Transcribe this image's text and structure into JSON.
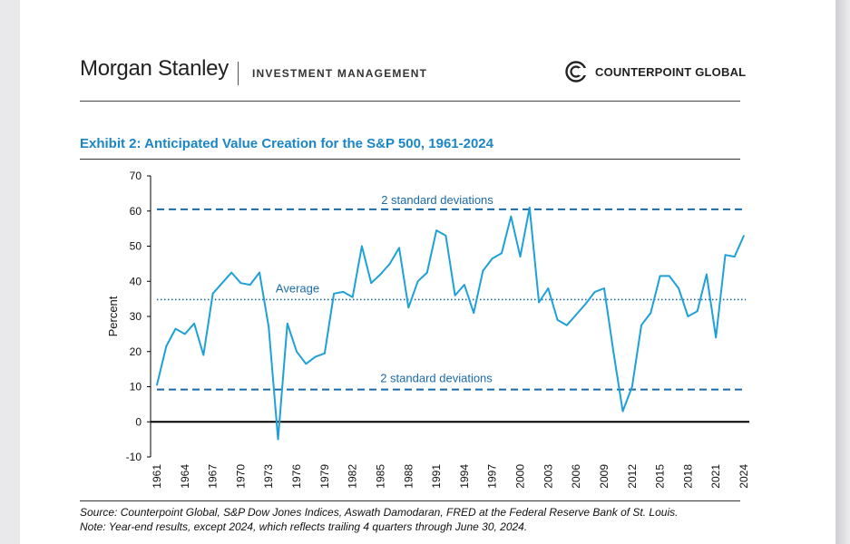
{
  "header": {
    "brand": "Morgan Stanley",
    "division": "INVESTMENT MANAGEMENT",
    "partner_logo_icon": "counterpoint-c-logo",
    "partner": "COUNTERPOINT GLOBAL"
  },
  "colors": {
    "accent": "#1a86c8",
    "line": "#1ea0d8",
    "axis": "#000000"
  },
  "chart_data": {
    "type": "line",
    "title": "Exhibit 2: Anticipated Value Creation for the S&P 500, 1961-2024",
    "ylabel": "Percent",
    "xlabel": "",
    "ylim": [
      -10,
      70
    ],
    "yticks": [
      -10,
      0,
      10,
      20,
      30,
      40,
      50,
      60,
      70
    ],
    "xlim": [
      1961,
      2024
    ],
    "xticks": [
      1961,
      1964,
      1967,
      1970,
      1973,
      1976,
      1979,
      1982,
      1985,
      1988,
      1991,
      1994,
      1997,
      2000,
      2003,
      2006,
      2009,
      2012,
      2015,
      2018,
      2021,
      2024
    ],
    "series": [
      {
        "name": "Anticipated value creation",
        "x": [
          1961,
          1962,
          1963,
          1964,
          1965,
          1966,
          1967,
          1968,
          1969,
          1970,
          1971,
          1972,
          1973,
          1974,
          1975,
          1976,
          1977,
          1978,
          1979,
          1980,
          1981,
          1982,
          1983,
          1984,
          1985,
          1986,
          1987,
          1988,
          1989,
          1990,
          1991,
          1992,
          1993,
          1994,
          1995,
          1996,
          1997,
          1998,
          1999,
          2000,
          2001,
          2002,
          2003,
          2004,
          2005,
          2006,
          2007,
          2008,
          2009,
          2010,
          2011,
          2012,
          2013,
          2014,
          2015,
          2016,
          2017,
          2018,
          2019,
          2020,
          2021,
          2022,
          2023,
          2024
        ],
        "values": [
          10.5,
          21.5,
          26.5,
          25,
          28,
          19,
          36.5,
          39.5,
          42.5,
          39.5,
          39,
          42.5,
          27,
          -5,
          28,
          20,
          16.5,
          18.5,
          19.5,
          36.5,
          37,
          35.5,
          50,
          39.5,
          42,
          45,
          49.5,
          32.5,
          40,
          42.5,
          54.5,
          53,
          36,
          39,
          31,
          43,
          46.5,
          48,
          58.5,
          47,
          61,
          34,
          38,
          29,
          27.5,
          30.5,
          33.5,
          37,
          38,
          20,
          3,
          10,
          27.5,
          31,
          41.5,
          41.5,
          38,
          30,
          31.5,
          42,
          24,
          47.5,
          47,
          53
        ]
      }
    ],
    "reference_lines": [
      {
        "name": "upper-2sd",
        "value": 60.5,
        "label": "2 standard deviations",
        "style": "dashed"
      },
      {
        "name": "average",
        "value": 34.8,
        "label": "Average",
        "style": "dotted"
      },
      {
        "name": "lower-2sd",
        "value": 9.2,
        "label": "2 standard deviations",
        "style": "dashed"
      }
    ]
  },
  "footer": {
    "source": "Source: Counterpoint Global, S&P Dow Jones Indices, Aswath Damodaran, FRED at the Federal Reserve Bank of St. Louis.",
    "note": "Note: Year-end results, except 2024, which reflects trailing 4 quarters through June 30, 2024."
  }
}
